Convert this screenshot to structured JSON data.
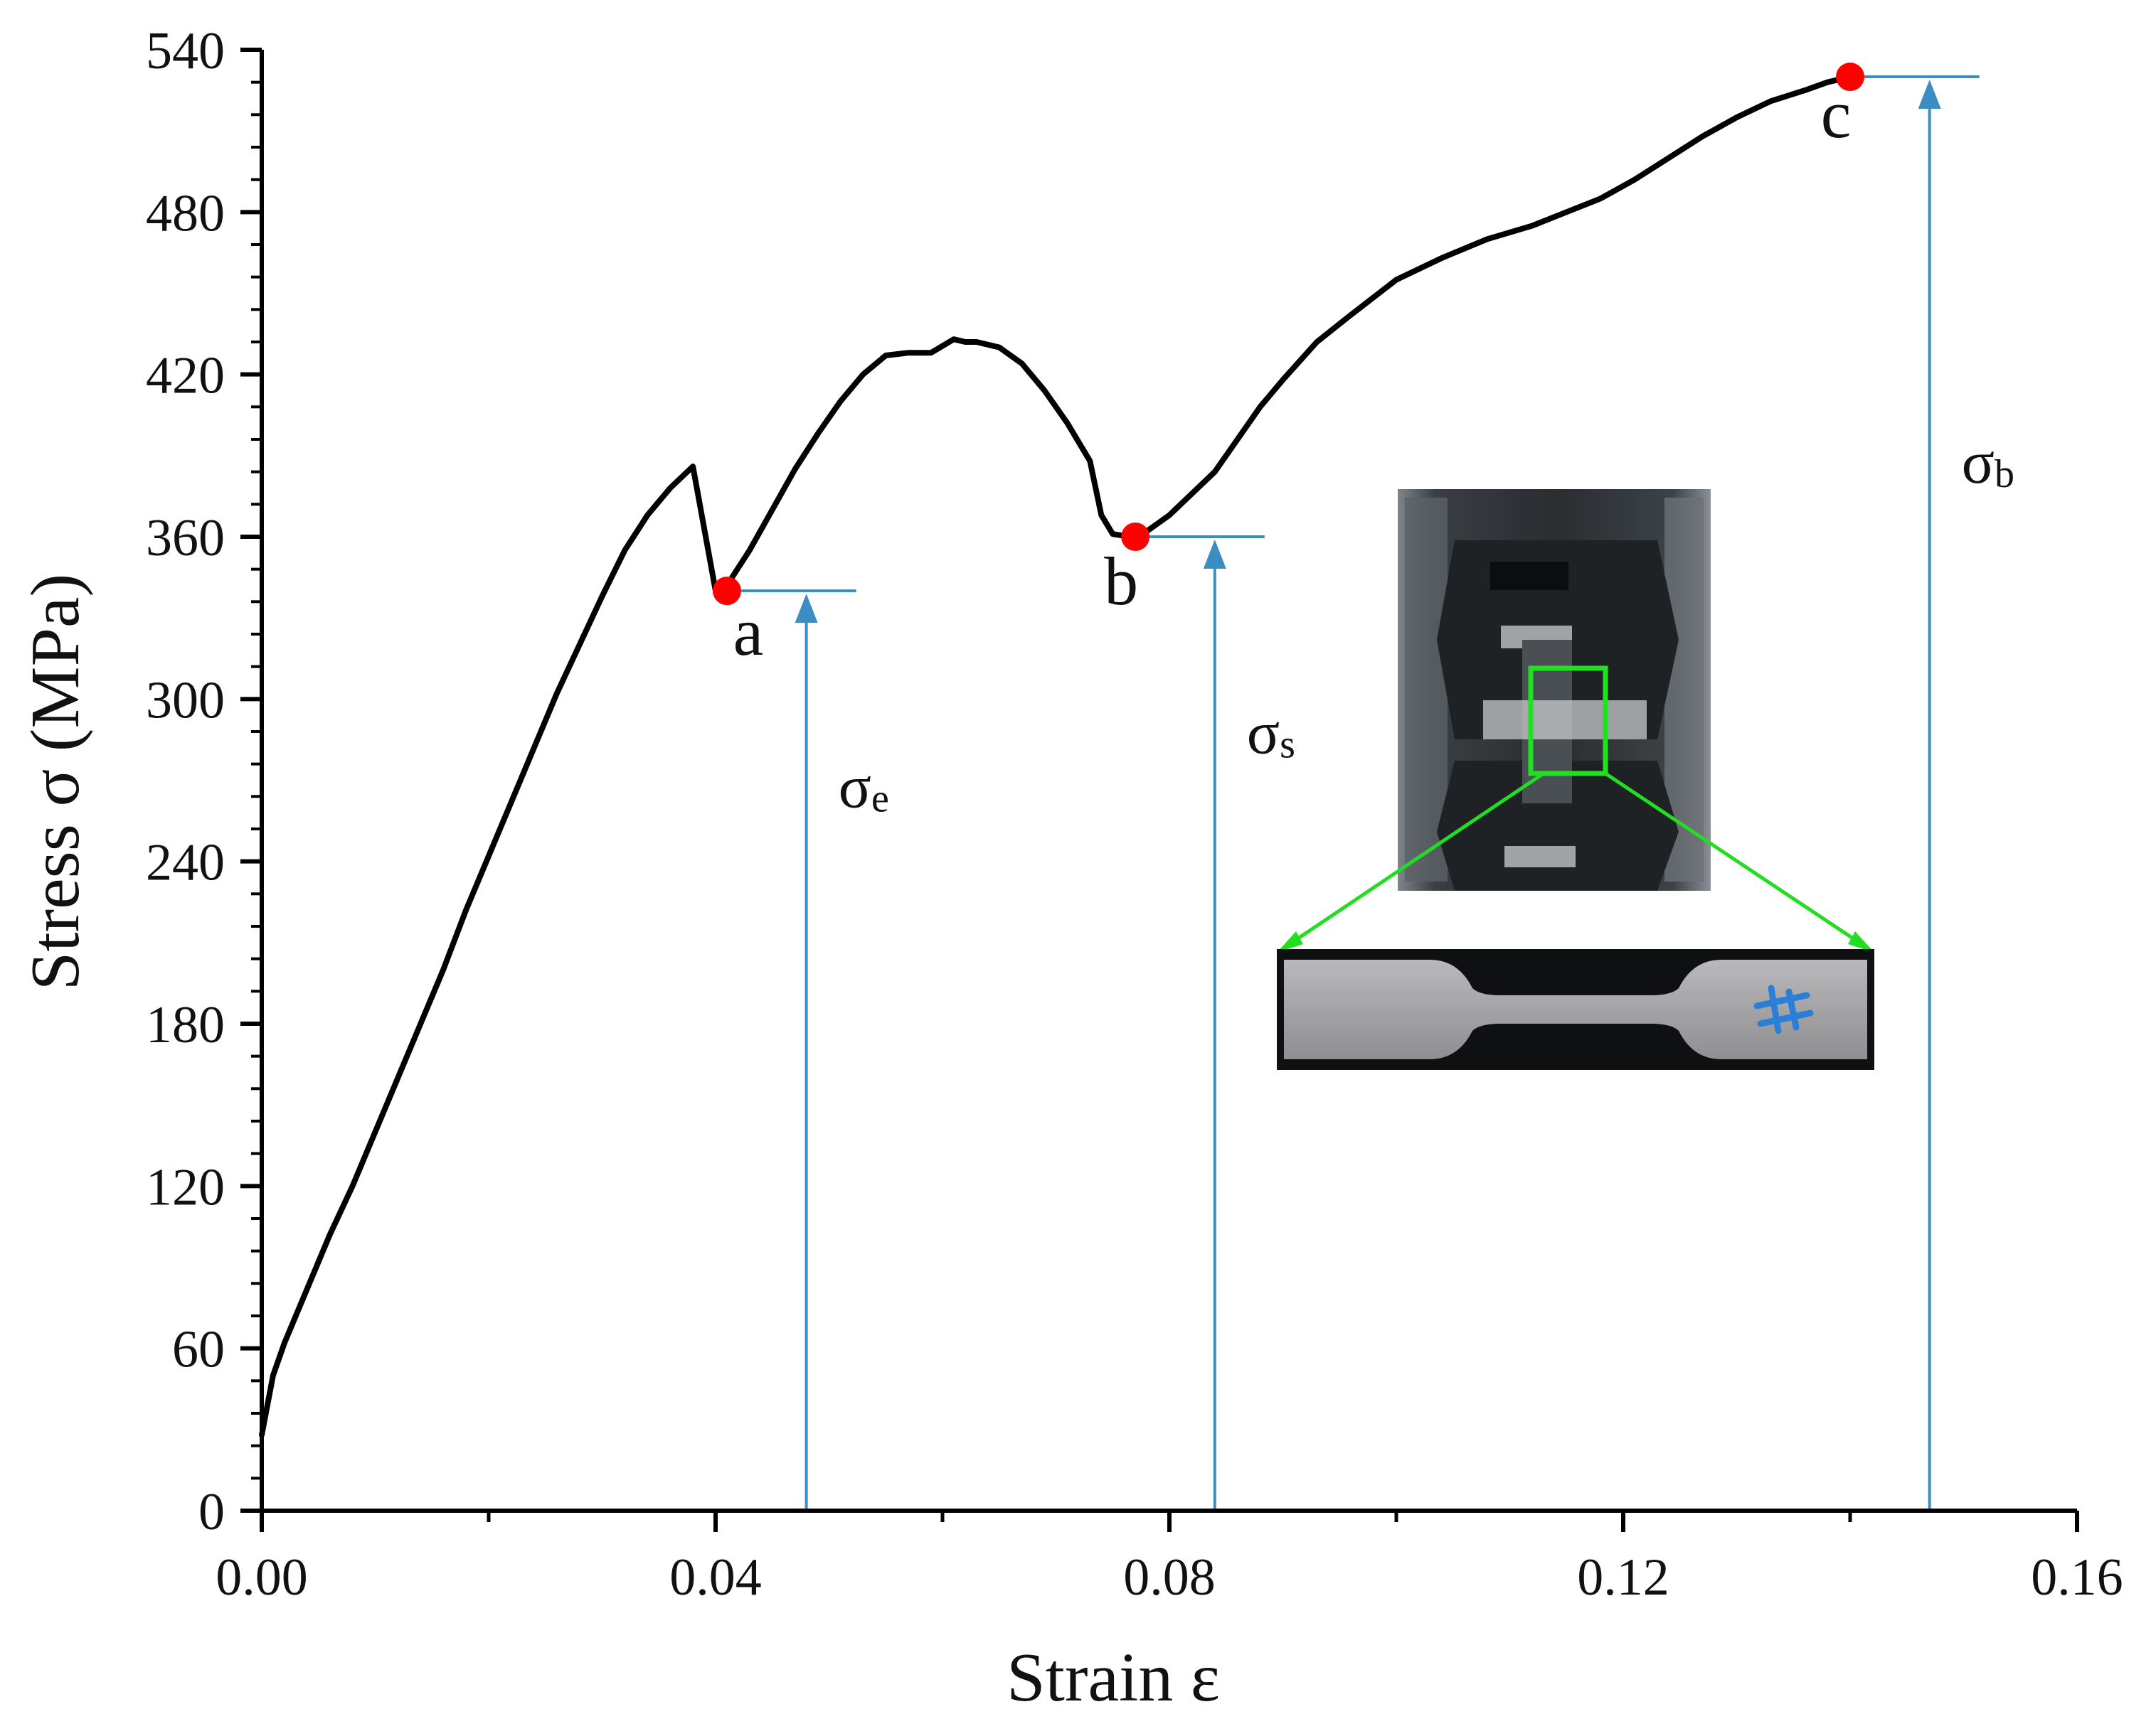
{
  "chart_data": {
    "type": "line",
    "xlabel": "Strain ε",
    "ylabel": "Stress σ (MPa)",
    "xlim": [
      0,
      0.16
    ],
    "ylim": [
      0,
      540
    ],
    "x_ticks": [
      "0.00",
      "0.04",
      "0.08",
      "0.12",
      "0.16"
    ],
    "x_tick_values": [
      0,
      0.04,
      0.08,
      0.12,
      0.16
    ],
    "y_ticks": [
      "0",
      "60",
      "120",
      "180",
      "240",
      "300",
      "360",
      "420",
      "480",
      "540"
    ],
    "y_tick_values": [
      0,
      60,
      120,
      180,
      240,
      300,
      360,
      420,
      480,
      540
    ],
    "grid": false,
    "series": [
      {
        "color": "#000000",
        "x": [
          0,
          0.001,
          0.002,
          0.004,
          0.006,
          0.008,
          0.01,
          0.012,
          0.014,
          0.016,
          0.018,
          0.02,
          0.022,
          0.024,
          0.026,
          0.028,
          0.03,
          0.032,
          0.034,
          0.036,
          0.038,
          0.04,
          0.041,
          0.043,
          0.045,
          0.047,
          0.049,
          0.051,
          0.053,
          0.055,
          0.057,
          0.059,
          0.061,
          0.062,
          0.063,
          0.065,
          0.067,
          0.069,
          0.071,
          0.073,
          0.074,
          0.075,
          0.0765,
          0.077,
          0.078,
          0.08,
          0.082,
          0.084,
          0.086,
          0.088,
          0.09,
          0.093,
          0.096,
          0.1,
          0.104,
          0.108,
          0.112,
          0.115,
          0.118,
          0.121,
          0.124,
          0.127,
          0.13,
          0.133,
          0.136,
          0.138,
          0.14
        ],
        "y": [
          28,
          50,
          62,
          82,
          102,
          120,
          140,
          160,
          180,
          200,
          222,
          242,
          262,
          282,
          302,
          320,
          338,
          355,
          368,
          378,
          386,
          340,
          342,
          355,
          370,
          385,
          398,
          410,
          420,
          427,
          428,
          428,
          433,
          432,
          432,
          430,
          424,
          414,
          402,
          388,
          368,
          361,
          360,
          360,
          362,
          368,
          376,
          384,
          396,
          408,
          418,
          432,
          442,
          455,
          463,
          470,
          475,
          480,
          485,
          492,
          500,
          508,
          515,
          521,
          525,
          528,
          530
        ]
      }
    ],
    "points": [
      {
        "label": "a",
        "x": 0.041,
        "y": 340,
        "color": "#ff0000"
      },
      {
        "label": "b",
        "x": 0.077,
        "y": 360,
        "color": "#ff0000"
      },
      {
        "label": "c",
        "x": 0.14,
        "y": 530,
        "color": "#ff0000"
      }
    ],
    "annotations": [
      {
        "symbol": "σ",
        "subscript": "e",
        "level": 340,
        "x": 0.048,
        "color": "#3a8ec2"
      },
      {
        "symbol": "σ",
        "subscript": "s",
        "level": 360,
        "x": 0.084,
        "color": "#3a8ec2"
      },
      {
        "symbol": "σ",
        "subscript": "b",
        "level": 530,
        "x": 0.147,
        "color": "#3a8ec2"
      }
    ]
  }
}
